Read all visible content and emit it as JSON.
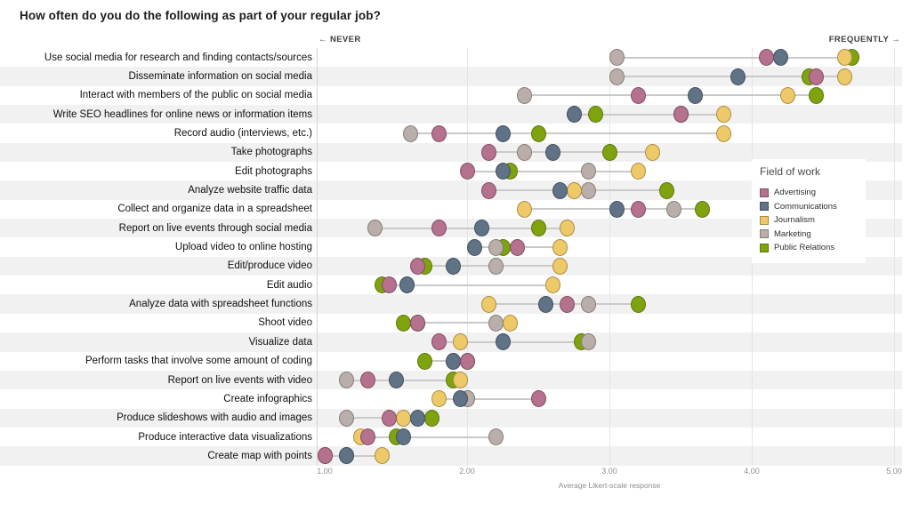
{
  "title": "How often do you do the following as part of your regular job?",
  "scale_header": {
    "left": "← NEVER",
    "right": "FREQUENTLY →"
  },
  "legend": {
    "title": "Field of work",
    "items": [
      "Advertising",
      "Communications",
      "Journalism",
      "Marketing",
      "Public Relations"
    ]
  },
  "x_axis": {
    "ticks": [
      "1.00",
      "2.00",
      "3.00",
      "4.00",
      "5.00"
    ],
    "tick_values": [
      1,
      2,
      3,
      4,
      5
    ],
    "label": "Average Likert-scale response",
    "min": 1,
    "max": 5
  },
  "chart_data": {
    "type": "scatter",
    "subtype": "dot-plot-likert",
    "title": "How often do you do the following as part of your regular job?",
    "xlabel": "Average Likert-scale response",
    "xlim": [
      1,
      5
    ],
    "x_ticks": [
      1,
      2,
      3,
      4,
      5
    ],
    "legend_position": "right-overlay",
    "grid": "vertical-faint",
    "categories": [
      "Use social media for research and finding contacts/sources",
      "Disseminate information on social media",
      "Interact with members of the public on social media",
      "Write SEO headlines for online news or information items",
      "Record audio (interviews, etc.)",
      "Take photographs",
      "Edit photographs",
      "Analyze website traffic data",
      "Collect and organize data in a spreadsheet",
      "Report on live events through social media",
      "Upload video to online hosting",
      "Edit/produce video",
      "Edit audio",
      "Analyze data with spreadsheet functions",
      "Shoot video",
      "Visualize data",
      "Perform tasks that involve some amount of coding",
      "Report on live events with video",
      "Create infographics",
      "Produce slideshows with audio and images",
      "Produce interactive data visualizations",
      "Create map with points"
    ],
    "series": [
      {
        "name": "Advertising",
        "color": "#b5718e",
        "stroke": "#7e4f64",
        "values": [
          4.1,
          4.45,
          3.2,
          3.5,
          1.8,
          2.15,
          2.0,
          2.15,
          3.2,
          1.8,
          2.35,
          1.65,
          1.45,
          2.7,
          1.65,
          1.8,
          2.0,
          1.3,
          2.5,
          1.45,
          1.3,
          1.0
        ]
      },
      {
        "name": "Communications",
        "color": "#5f7286",
        "stroke": "#42505e",
        "values": [
          4.2,
          3.9,
          3.6,
          2.75,
          2.25,
          2.6,
          2.25,
          2.65,
          3.05,
          2.1,
          2.05,
          1.9,
          1.58,
          2.55,
          1.65,
          2.25,
          1.9,
          1.5,
          1.95,
          1.65,
          1.55,
          1.15
        ]
      },
      {
        "name": "Journalism",
        "color": "#edc96a",
        "stroke": "#ab8c40",
        "values": [
          4.65,
          4.65,
          4.25,
          3.8,
          3.8,
          3.3,
          3.2,
          2.75,
          2.4,
          2.7,
          2.65,
          2.65,
          2.6,
          2.15,
          2.3,
          1.95,
          2.0,
          1.95,
          1.8,
          1.55,
          1.25,
          1.4
        ]
      },
      {
        "name": "Marketing",
        "color": "#b9aeaa",
        "stroke": "#857b77",
        "values": [
          3.05,
          3.05,
          2.4,
          3.5,
          1.6,
          2.4,
          2.85,
          2.85,
          3.45,
          1.35,
          2.2,
          2.2,
          1.58,
          2.85,
          2.2,
          2.85,
          1.9,
          1.15,
          2.0,
          1.15,
          2.2,
          1.15
        ]
      },
      {
        "name": "Public Relations",
        "color": "#7fa30f",
        "stroke": "#5c770c",
        "values": [
          4.7,
          4.4,
          4.45,
          2.9,
          2.5,
          3.0,
          2.3,
          3.4,
          3.65,
          2.5,
          2.25,
          1.7,
          1.4,
          3.2,
          1.55,
          2.8,
          1.7,
          1.9,
          2.0,
          1.75,
          1.5,
          1.0
        ]
      }
    ]
  }
}
